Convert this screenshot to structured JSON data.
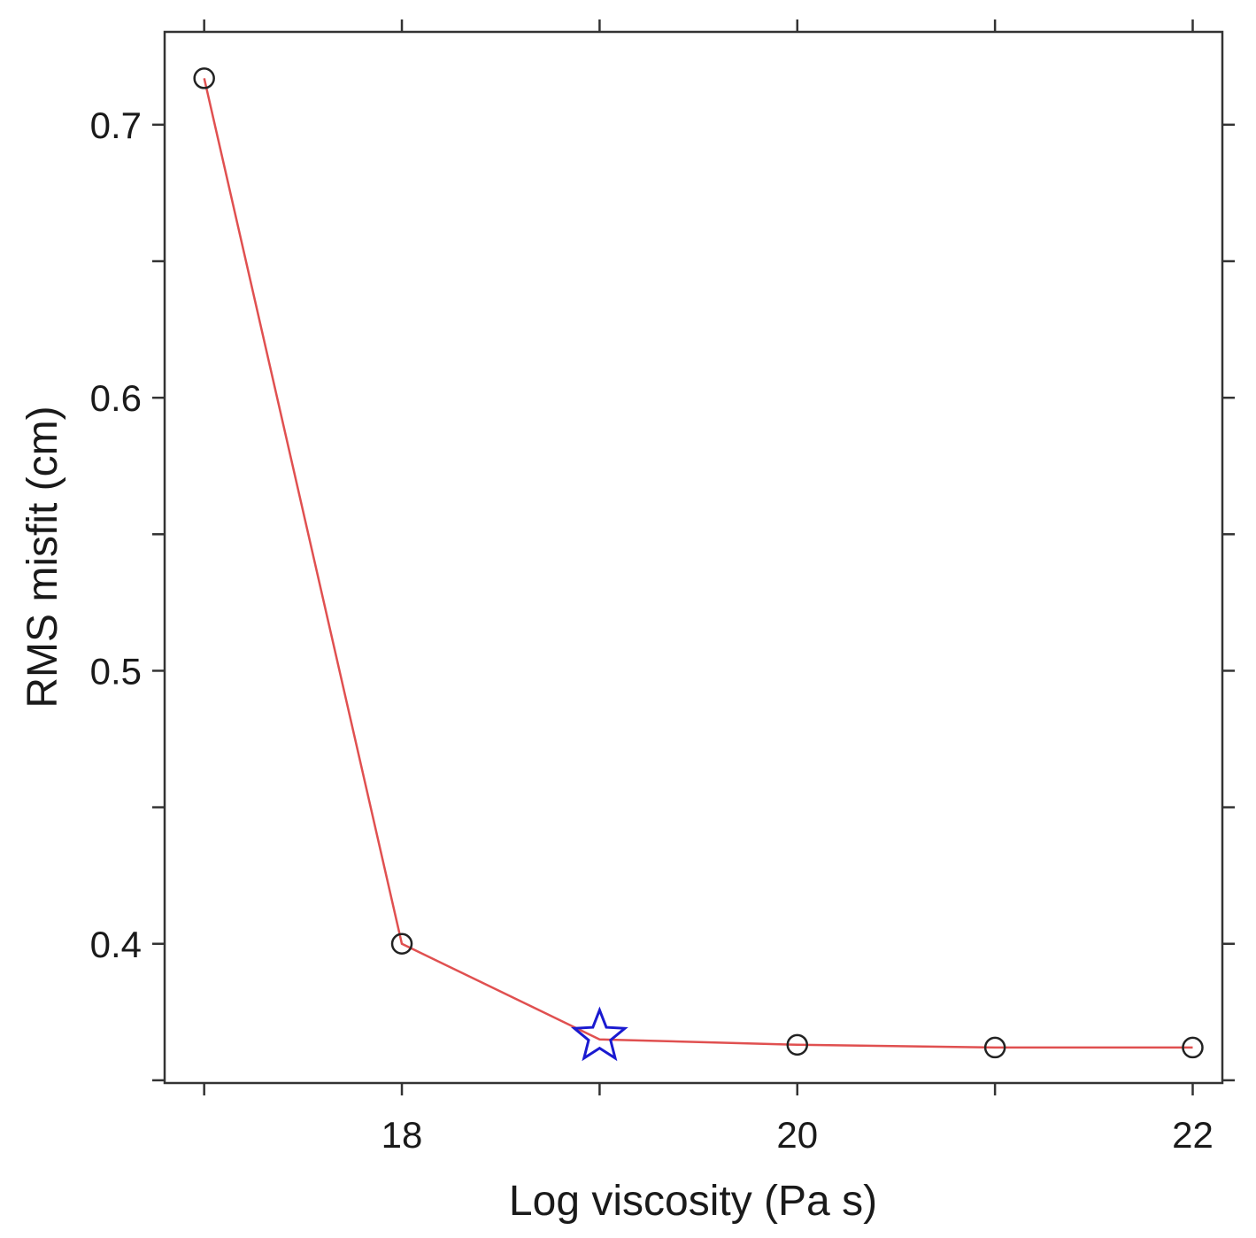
{
  "chart_data": {
    "type": "line",
    "title": "",
    "xlabel": "Log viscosity (Pa s)",
    "ylabel": "RMS misfit (cm)",
    "xlim": [
      16.8,
      22.15
    ],
    "ylim": [
      0.349,
      0.734
    ],
    "x_ticks": [
      18,
      20,
      22
    ],
    "x_minor_ticks": [
      17,
      19,
      21
    ],
    "y_ticks": [
      0.4,
      0.5,
      0.6,
      0.7
    ],
    "y_minor_ticks": [
      0.35,
      0.45,
      0.55,
      0.65
    ],
    "grid": false,
    "legend": "none",
    "series": [
      {
        "x": [
          17,
          18,
          19,
          20,
          21,
          22
        ],
        "y": [
          0.717,
          0.4,
          0.365,
          0.363,
          0.362,
          0.362
        ],
        "line_color": "#e05050",
        "marker": "open-circle",
        "marker_color": "#222222"
      }
    ],
    "highlight": {
      "x": 19,
      "y": 0.366,
      "marker": "star",
      "color": "#1a1ad0"
    }
  }
}
